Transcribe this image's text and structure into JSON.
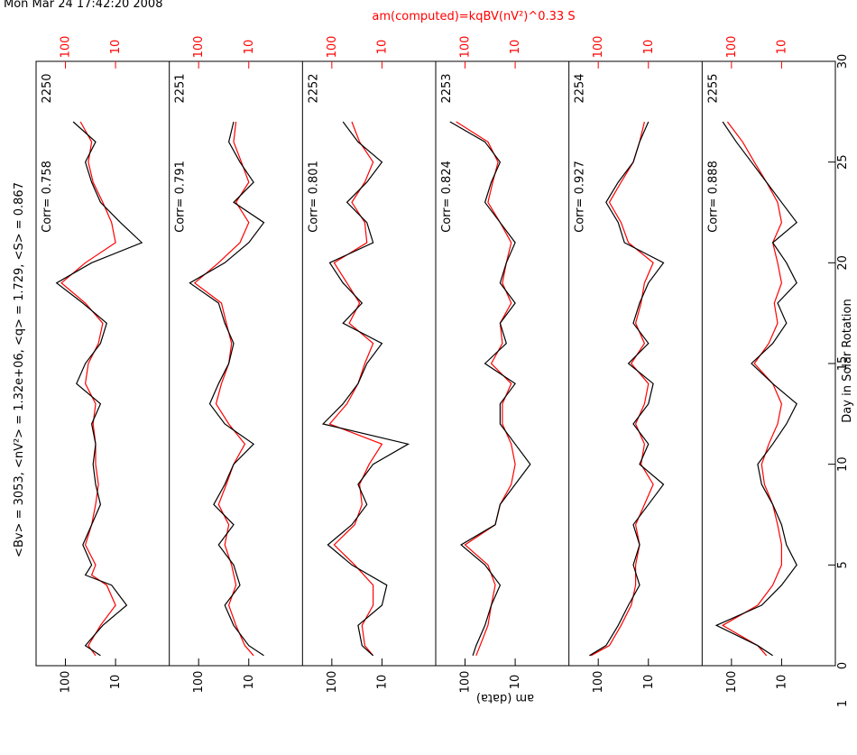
{
  "header": {
    "timestamp": "Mon Mar 24 17:42:20 2008",
    "stats_line": "<Bv> = 3053, <nV²> = 1.32e+06, <q> = 1.729, <S> = 0.867",
    "computed_title": "am(computed)=kqBV(nV²)^0.33 S"
  },
  "chart_data": {
    "type": "line",
    "xlabel": "Day in Solar Rotation",
    "ylabel": "am (data)",
    "xlim": [
      0,
      30
    ],
    "xticks": [
      0,
      5,
      10,
      15,
      20,
      25,
      30
    ],
    "yscale": "log",
    "ylim": [
      1,
      300
    ],
    "yticks": [
      100,
      10
    ],
    "yticklabels_bottom": [
      "100",
      "10",
      "1"
    ],
    "series_style": {
      "data": "#000000",
      "computed": "#ff0000"
    },
    "panels": [
      {
        "rotation": "2250",
        "corr": "Corr= 0.758",
        "x": [
          0.5,
          1,
          2,
          3,
          4,
          4.5,
          5,
          6,
          7,
          8,
          9,
          10,
          11,
          12,
          13,
          14,
          15,
          16,
          17,
          18,
          19,
          20,
          21,
          22,
          23,
          24,
          25,
          26,
          27
        ],
        "data": [
          20,
          40,
          18,
          6,
          12,
          40,
          30,
          45,
          30,
          20,
          25,
          28,
          25,
          30,
          20,
          60,
          40,
          20,
          15,
          45,
          150,
          30,
          3,
          8,
          20,
          30,
          40,
          25,
          70
        ],
        "computed": [
          25,
          35,
          20,
          10,
          15,
          30,
          25,
          40,
          30,
          25,
          22,
          25,
          25,
          28,
          25,
          40,
          35,
          22,
          18,
          40,
          120,
          40,
          10,
          12,
          18,
          28,
          35,
          30,
          50
        ]
      },
      {
        "rotation": "2251",
        "corr": "Corr= 0.791",
        "x": [
          0.5,
          1,
          2,
          3,
          4,
          5,
          6,
          7,
          8,
          9,
          10,
          11,
          12,
          13,
          14,
          15,
          16,
          17,
          18,
          19,
          20,
          21,
          22,
          23,
          24,
          25,
          26,
          27
        ],
        "data": [
          5,
          10,
          20,
          30,
          15,
          20,
          40,
          20,
          50,
          30,
          20,
          8,
          30,
          60,
          40,
          25,
          20,
          30,
          40,
          150,
          30,
          10,
          5,
          20,
          8,
          15,
          25,
          20
        ],
        "computed": [
          8,
          12,
          18,
          25,
          18,
          22,
          30,
          25,
          40,
          28,
          20,
          12,
          25,
          45,
          35,
          25,
          22,
          28,
          35,
          120,
          40,
          15,
          10,
          18,
          10,
          14,
          20,
          18
        ]
      },
      {
        "rotation": "2252",
        "corr": "Corr= 0.801",
        "x": [
          0.5,
          1,
          2,
          3,
          4,
          5,
          6,
          7,
          8,
          9,
          10,
          11,
          12,
          13,
          14,
          15,
          16,
          17,
          18,
          19,
          20,
          21,
          22,
          23,
          24,
          25,
          26,
          27
        ],
        "data": [
          15,
          25,
          30,
          10,
          8,
          40,
          120,
          40,
          20,
          30,
          15,
          3,
          150,
          60,
          30,
          20,
          10,
          60,
          25,
          60,
          110,
          15,
          20,
          50,
          20,
          10,
          30,
          60
        ],
        "computed": [
          15,
          22,
          25,
          15,
          15,
          35,
          90,
          35,
          25,
          28,
          18,
          10,
          110,
          50,
          30,
          22,
          15,
          45,
          28,
          50,
          90,
          20,
          22,
          40,
          22,
          15,
          28,
          40
        ]
      },
      {
        "rotation": "2253",
        "corr": "Corr= 0.824",
        "x": [
          0.5,
          1,
          2,
          3,
          4,
          5,
          6,
          7,
          8,
          9,
          10,
          11,
          12,
          13,
          14,
          15,
          16,
          17,
          18,
          19,
          20,
          21,
          22,
          23,
          24,
          25,
          26,
          27
        ],
        "data": [
          70,
          60,
          40,
          30,
          20,
          40,
          120,
          25,
          20,
          10,
          5,
          10,
          20,
          20,
          10,
          40,
          15,
          20,
          10,
          20,
          15,
          10,
          20,
          40,
          30,
          20,
          40,
          200
        ],
        "computed": [
          60,
          50,
          35,
          30,
          25,
          35,
          100,
          25,
          20,
          12,
          10,
          12,
          18,
          18,
          12,
          30,
          18,
          20,
          12,
          18,
          15,
          12,
          20,
          35,
          28,
          22,
          35,
          150
        ]
      },
      {
        "rotation": "2254",
        "corr": "Corr= 0.927",
        "x": [
          0.5,
          1,
          2,
          3,
          4,
          5,
          6,
          7,
          8,
          9,
          10,
          11,
          12,
          13,
          14,
          15,
          16,
          17,
          18,
          19,
          20,
          21,
          22,
          23,
          24,
          25,
          26,
          27
        ],
        "data": [
          150,
          70,
          40,
          25,
          15,
          20,
          15,
          20,
          10,
          5,
          15,
          10,
          20,
          10,
          8,
          25,
          10,
          20,
          15,
          10,
          5,
          30,
          40,
          70,
          40,
          20,
          15,
          10
        ],
        "computed": [
          140,
          60,
          35,
          22,
          18,
          18,
          15,
          18,
          12,
          8,
          14,
          12,
          18,
          12,
          10,
          22,
          12,
          18,
          14,
          12,
          8,
          25,
          35,
          60,
          35,
          20,
          15,
          12
        ]
      },
      {
        "rotation": "2255",
        "corr": "Corr= 0.888",
        "x": [
          0.5,
          1,
          2,
          3,
          4,
          5,
          6,
          7,
          8,
          9,
          10,
          11,
          12,
          13,
          14,
          15,
          16,
          17,
          18,
          19,
          20,
          21,
          22,
          23,
          24,
          25,
          26,
          27
        ],
        "data": [
          15,
          30,
          200,
          25,
          10,
          5,
          8,
          10,
          15,
          25,
          30,
          15,
          8,
          5,
          15,
          40,
          15,
          8,
          12,
          5,
          8,
          15,
          5,
          10,
          20,
          40,
          80,
          150
        ],
        "computed": [
          20,
          30,
          150,
          30,
          15,
          10,
          10,
          12,
          15,
          22,
          25,
          18,
          12,
          10,
          15,
          35,
          18,
          12,
          14,
          10,
          12,
          15,
          10,
          12,
          20,
          35,
          60,
          120
        ]
      }
    ]
  }
}
